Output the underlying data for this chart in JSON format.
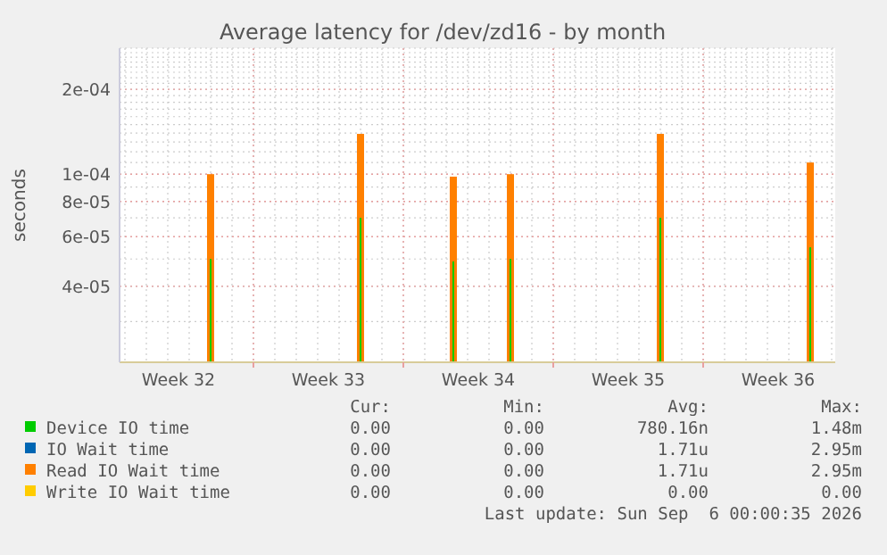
{
  "chart_data": {
    "type": "bar",
    "title": "Average latency for /dev/zd16 - by month",
    "ylabel": "seconds",
    "x": [
      "2026-08-08",
      "2026-08-15",
      "2026-08-19T08:00",
      "2026-08-22",
      "2026-08-29",
      "2026-09-05"
    ],
    "series": [
      {
        "name": "Device IO time",
        "color": "#00cc00",
        "values": [
          5e-05,
          7e-05,
          4.9e-05,
          5e-05,
          7e-05,
          5.5e-05
        ]
      },
      {
        "name": "IO Wait time",
        "color": "#0066b3",
        "values": [
          null,
          null,
          null,
          null,
          null,
          null
        ]
      },
      {
        "name": "Read IO Wait time",
        "color": "#ff8000",
        "values": [
          0.0001,
          0.000139,
          9.8e-05,
          0.0001,
          0.000139,
          0.00011
        ]
      },
      {
        "name": "Write IO Wait time",
        "color": "#ffcc00",
        "values": [
          null,
          null,
          null,
          null,
          null,
          null
        ]
      }
    ],
    "log": "y",
    "ylim": [
      2.15e-05,
      0.00028
    ],
    "yticks": [
      {
        "value": 4e-05,
        "label": "4e-05"
      },
      {
        "value": 6e-05,
        "label": "6e-05"
      },
      {
        "value": 8e-05,
        "label": "8e-05"
      },
      {
        "value": 0.0001,
        "label": "1e-04"
      },
      {
        "value": 0.0002,
        "label": "2e-04"
      }
    ],
    "xlim": [
      "2026-08-03T18:00",
      "2026-09-06T04:00"
    ],
    "xticks": [
      {
        "value": "2026-08-06T12:00",
        "label": "Week 32"
      },
      {
        "value": "2026-08-10",
        "label": null
      },
      {
        "value": "2026-08-13T12:00",
        "label": "Week 33"
      },
      {
        "value": "2026-08-17",
        "label": null
      },
      {
        "value": "2026-08-20T12:00",
        "label": "Week 34"
      },
      {
        "value": "2026-08-24",
        "label": null
      },
      {
        "value": "2026-08-27T12:00",
        "label": "Week 35"
      },
      {
        "value": "2026-08-31",
        "label": null
      },
      {
        "value": "2026-09-03T12:00",
        "label": "Week 36"
      }
    ],
    "grid": true,
    "legend": "bottom",
    "annotations": [
      "Cur:",
      "Min:",
      "Avg:",
      "Max:",
      "0.00",
      "0.00",
      "780.16n",
      "1.48m",
      "0.00",
      "0.00",
      "1.71u",
      "2.95m",
      "0.00",
      "0.00",
      "1.71u",
      "2.95m",
      "0.00",
      "0.00",
      "0.00",
      "0.00",
      "Last update: Sun Sep  6 00:00:35 2026"
    ]
  }
}
